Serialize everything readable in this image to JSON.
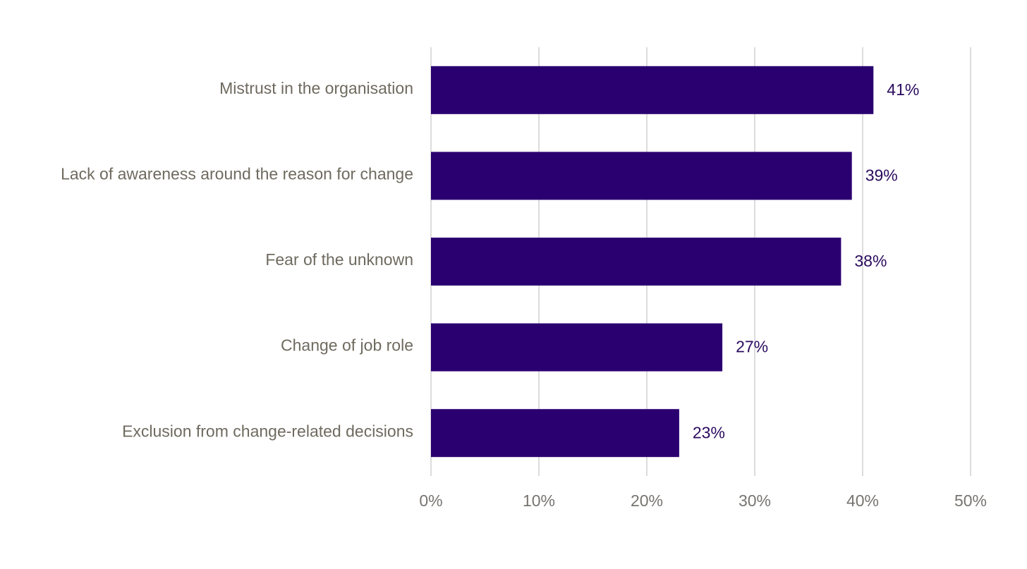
{
  "chart_data": {
    "type": "bar",
    "orientation": "horizontal",
    "categories": [
      "Mistrust in the organisation",
      "Lack of awareness around the reason for change",
      "Fear of the unknown",
      "Change of job role",
      "Exclusion from change-related decisions"
    ],
    "values": [
      41,
      39,
      38,
      27,
      23
    ],
    "value_labels": [
      "41%",
      "39%",
      "38%",
      "27%",
      "23%"
    ],
    "color": "#2a0070",
    "xlim": [
      0,
      50
    ],
    "xticks": [
      {
        "value": 0,
        "label": "0%"
      },
      {
        "value": 10,
        "label": "10%"
      },
      {
        "value": 20,
        "label": "20%"
      },
      {
        "value": 30,
        "label": "30%"
      },
      {
        "value": 40,
        "label": "40%"
      },
      {
        "value": 50,
        "label": "50%"
      }
    ],
    "grid": true
  }
}
